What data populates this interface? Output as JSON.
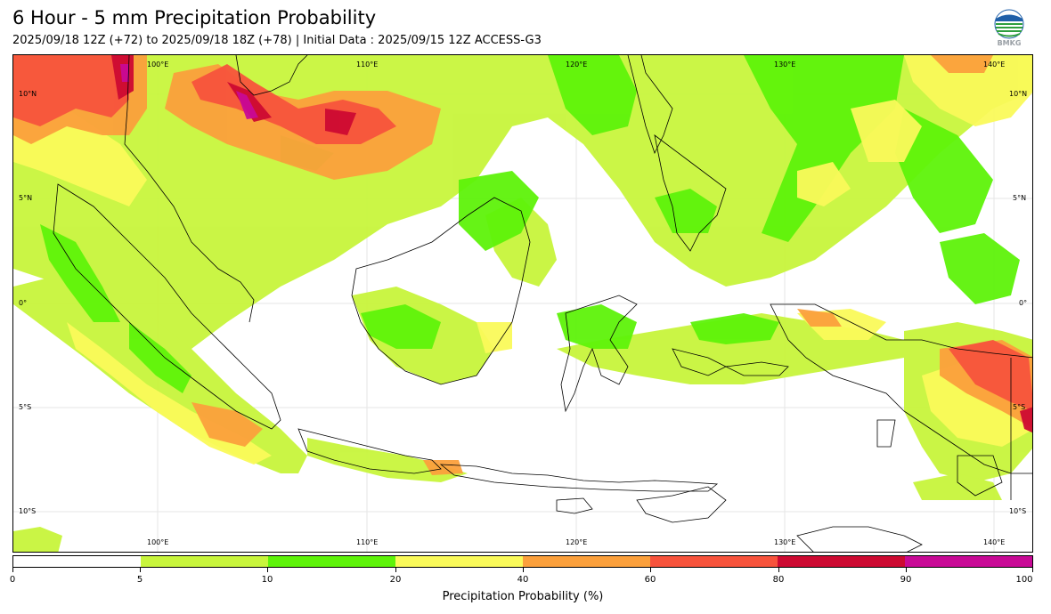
{
  "title": "6 Hour - 5 mm Precipitation Probability",
  "subtitle": "2025/09/18 12Z (+72) to 2025/09/18 18Z (+78) | Initial Data : 2025/09/15 12Z ACCESS-G3",
  "logo": {
    "icon": "bmkg-logo-icon",
    "text": "BMKG"
  },
  "map": {
    "lon_labels": [
      "100°E",
      "110°E",
      "120°E",
      "130°E",
      "140°E"
    ],
    "lat_labels_left": [
      "10°N",
      "5°N",
      "0°",
      "5°S",
      "10°S"
    ],
    "lat_labels_right": [
      "10°N",
      "5°N",
      "0°",
      "5°S",
      "10°S"
    ]
  },
  "colorbar": {
    "title": "Precipitation Probability (%)",
    "ticks": [
      "0",
      "5",
      "10",
      "20",
      "40",
      "60",
      "80",
      "90",
      "100"
    ],
    "colors": [
      "#ffffff",
      "#c8f53c",
      "#5ef30a",
      "#fafa5a",
      "#fba03c",
      "#f7533c",
      "#cd0a32",
      "#c80a96"
    ]
  }
}
